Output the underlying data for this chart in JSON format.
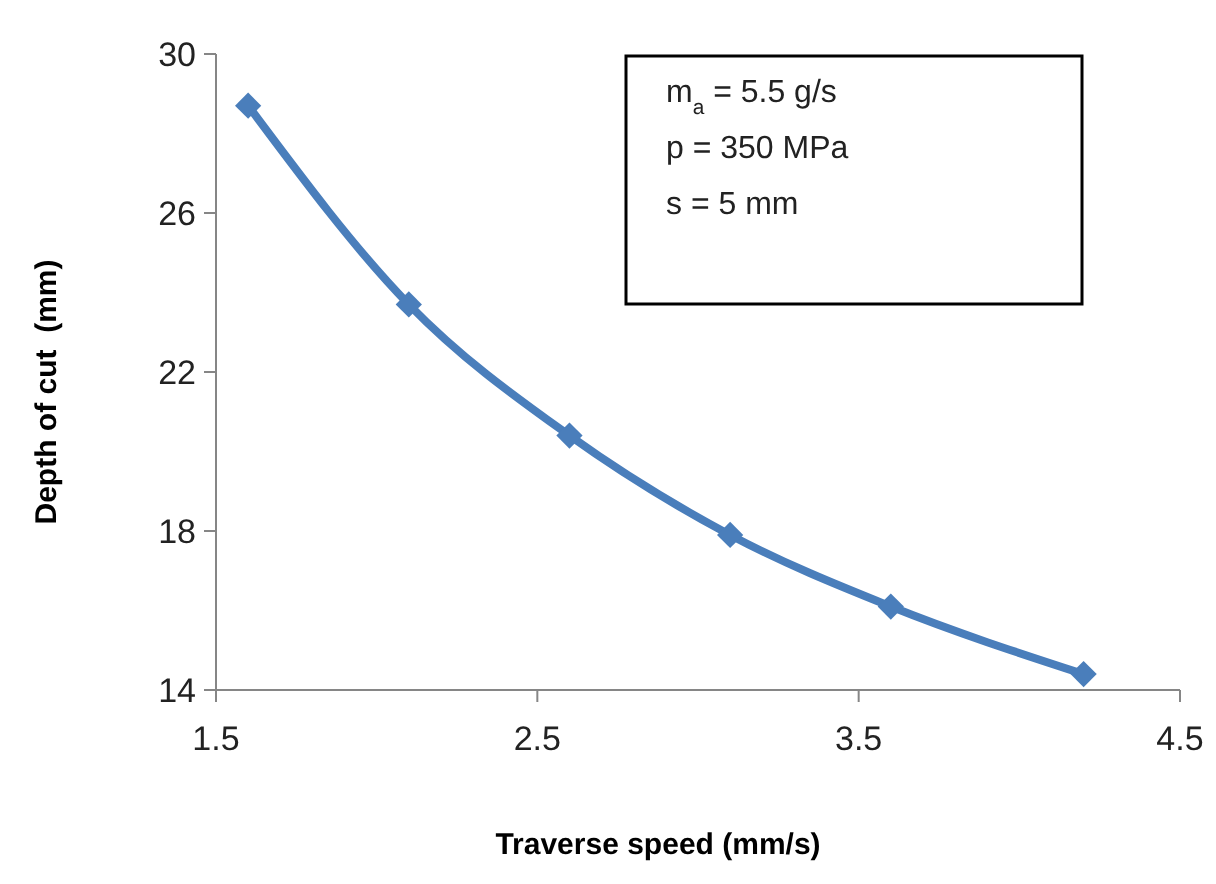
{
  "chart_data": {
    "type": "line",
    "xlabel": "Traverse speed (mm/s)",
    "ylabel": "Depth of cut  (mm)",
    "annotations": [
      "m$_{a}$ = 5.5 g/s",
      "p = 350 MPa",
      "s = 5 mm"
    ],
    "x": [
      1.6,
      2.1,
      2.6,
      3.1,
      3.6,
      4.2
    ],
    "series": [
      {
        "color": "#4a7ebb",
        "values": [
          28.7,
          23.7,
          20.4,
          17.9,
          16.1,
          14.4
        ]
      }
    ],
    "xlim": [
      1.5,
      4.5
    ],
    "xticks": [
      1.5,
      2.5,
      3.5,
      4.5
    ],
    "ylim": [
      14,
      30
    ],
    "yticks": [
      14,
      18,
      22,
      26,
      30
    ],
    "grid": false,
    "marker": "diamond",
    "line_style": "solid"
  }
}
